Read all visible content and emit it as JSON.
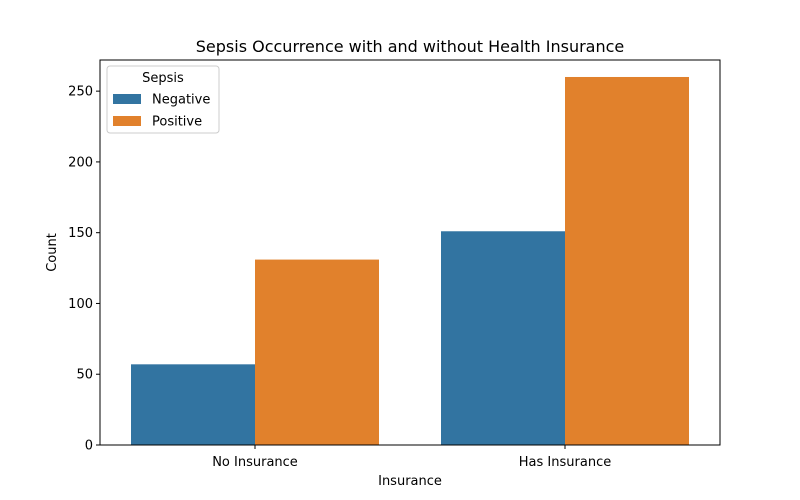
{
  "chart_data": {
    "type": "bar",
    "title": "Sepsis Occurrence with and without Health Insurance",
    "xlabel": "Insurance",
    "ylabel": "Count",
    "categories": [
      "No Insurance",
      "Has Insurance"
    ],
    "series": [
      {
        "name": "Negative",
        "values": [
          57,
          151
        ],
        "color": "#3274a1"
      },
      {
        "name": "Positive",
        "values": [
          131,
          260
        ],
        "color": "#e1812c"
      }
    ],
    "ylim": [
      0,
      272
    ],
    "yticks": [
      0,
      50,
      100,
      150,
      200,
      250
    ],
    "legend": {
      "title": "Sepsis",
      "placement": "top-left"
    },
    "grid": false
  }
}
